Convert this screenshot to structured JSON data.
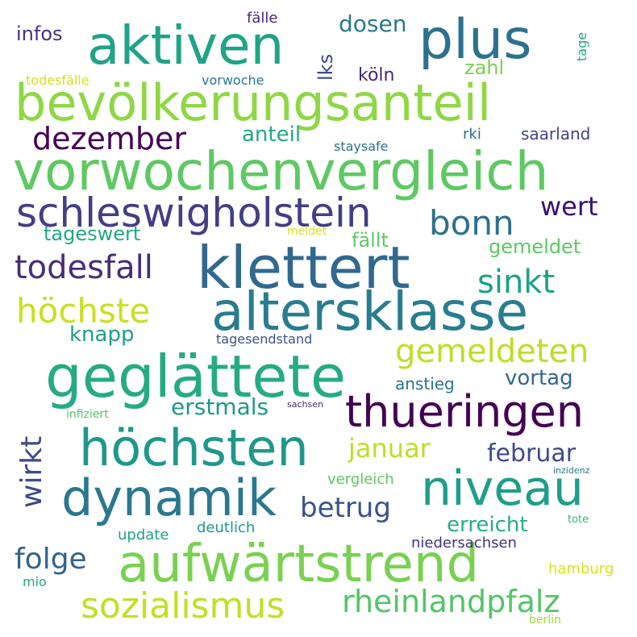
{
  "colors": {
    "background": "#ffffff",
    "viridis_purple": "#440154",
    "viridis_indigo": "#46327e",
    "viridis_blue": "#365c8d",
    "viridis_steel": "#277f8e",
    "viridis_teal": "#1fa187",
    "viridis_green": "#4ac16d",
    "viridis_lime": "#a0da39",
    "viridis_yellow": "#fde725"
  },
  "words": [
    {
      "text": "bevölkerungsanteil",
      "color": "#8fd744",
      "orientation": "horizontal"
    },
    {
      "text": "vorwochenvergleich",
      "color": "#5ec962",
      "orientation": "horizontal"
    },
    {
      "text": "aktiven",
      "color": "#20a386",
      "orientation": "horizontal"
    },
    {
      "text": "plus",
      "color": "#2c728e",
      "orientation": "horizontal"
    },
    {
      "text": "klettert",
      "color": "#31688e",
      "orientation": "horizontal"
    },
    {
      "text": "altersklasse",
      "color": "#287d8e",
      "orientation": "horizontal"
    },
    {
      "text": "schleswigholstein",
      "color": "#433e85",
      "orientation": "horizontal"
    },
    {
      "text": "geglättete",
      "color": "#25ab82",
      "orientation": "horizontal"
    },
    {
      "text": "thueringen",
      "color": "#440154",
      "orientation": "horizontal"
    },
    {
      "text": "höchsten",
      "color": "#1f988b",
      "orientation": "horizontal"
    },
    {
      "text": "dynamik",
      "color": "#2a788e",
      "orientation": "horizontal"
    },
    {
      "text": "niveau",
      "color": "#1f9e89",
      "orientation": "horizontal"
    },
    {
      "text": "aufwärtstrend",
      "color": "#7ad151",
      "orientation": "horizontal"
    },
    {
      "text": "sozialismus",
      "color": "#c2df23",
      "orientation": "horizontal"
    },
    {
      "text": "rheinlandpfalz",
      "color": "#52c569",
      "orientation": "horizontal"
    },
    {
      "text": "dezember",
      "color": "#440154",
      "orientation": "horizontal"
    },
    {
      "text": "bonn",
      "color": "#2c728e",
      "orientation": "horizontal"
    },
    {
      "text": "wert",
      "color": "#3b0f70",
      "orientation": "horizontal"
    },
    {
      "text": "todesfall",
      "color": "#472d7b",
      "orientation": "horizontal"
    },
    {
      "text": "höchste",
      "color": "#c8e020",
      "orientation": "horizontal"
    },
    {
      "text": "sinkt",
      "color": "#1fa188",
      "orientation": "horizontal"
    },
    {
      "text": "gemeldeten",
      "color": "#bddf26",
      "orientation": "horizontal"
    },
    {
      "text": "januar",
      "color": "#bddf26",
      "orientation": "horizontal"
    },
    {
      "text": "betrug",
      "color": "#3b528b",
      "orientation": "horizontal"
    },
    {
      "text": "folge",
      "color": "#33638d",
      "orientation": "horizontal"
    },
    {
      "text": "februar",
      "color": "#3e4a89",
      "orientation": "horizontal"
    },
    {
      "text": "erstmals",
      "color": "#1f988b",
      "orientation": "horizontal"
    },
    {
      "text": "wirkt",
      "color": "#3e4a89",
      "orientation": "vertical"
    },
    {
      "text": "vortag",
      "color": "#31688e",
      "orientation": "horizontal"
    },
    {
      "text": "knapp",
      "color": "#1f9e89",
      "orientation": "horizontal"
    },
    {
      "text": "anteil",
      "color": "#22a884",
      "orientation": "horizontal"
    },
    {
      "text": "tageswert",
      "color": "#22a884",
      "orientation": "horizontal"
    },
    {
      "text": "fällt",
      "color": "#5ec962",
      "orientation": "horizontal"
    },
    {
      "text": "gemeldet",
      "color": "#5ec962",
      "orientation": "horizontal"
    },
    {
      "text": "dosen",
      "color": "#2a788e",
      "orientation": "horizontal"
    },
    {
      "text": "zahl",
      "color": "#7ad151",
      "orientation": "horizontal"
    },
    {
      "text": "köln",
      "color": "#482878",
      "orientation": "horizontal"
    },
    {
      "text": "lks",
      "color": "#3e4a89",
      "orientation": "vertical"
    },
    {
      "text": "infos",
      "color": "#46327e",
      "orientation": "horizontal"
    },
    {
      "text": "fälle",
      "color": "#482878",
      "orientation": "horizontal"
    },
    {
      "text": "tage",
      "color": "#22a884",
      "orientation": "vertical"
    },
    {
      "text": "todesfälle",
      "color": "#d8e219",
      "orientation": "horizontal"
    },
    {
      "text": "vorwoche",
      "color": "#2a788e",
      "orientation": "horizontal"
    },
    {
      "text": "rki",
      "color": "#2c728e",
      "orientation": "horizontal"
    },
    {
      "text": "saarland",
      "color": "#414487",
      "orientation": "horizontal"
    },
    {
      "text": "staysafe",
      "color": "#2c728e",
      "orientation": "horizontal"
    },
    {
      "text": "meldet",
      "color": "#d8e219",
      "orientation": "horizontal"
    },
    {
      "text": "tagesendstand",
      "color": "#3b528b",
      "orientation": "horizontal"
    },
    {
      "text": "anstieg",
      "color": "#2c728e",
      "orientation": "horizontal"
    },
    {
      "text": "infiziert",
      "color": "#52c569",
      "orientation": "horizontal"
    },
    {
      "text": "sachsen",
      "color": "#482878",
      "orientation": "horizontal"
    },
    {
      "text": "vergleich",
      "color": "#5ec962",
      "orientation": "horizontal"
    },
    {
      "text": "inzidenz",
      "color": "#2c728e",
      "orientation": "horizontal"
    },
    {
      "text": "erreicht",
      "color": "#29af7f",
      "orientation": "horizontal"
    },
    {
      "text": "tote",
      "color": "#35b779",
      "orientation": "horizontal"
    },
    {
      "text": "update",
      "color": "#20a386",
      "orientation": "horizontal"
    },
    {
      "text": "deutlich",
      "color": "#1f988b",
      "orientation": "horizontal"
    },
    {
      "text": "niedersachsen",
      "color": "#46327e",
      "orientation": "horizontal"
    },
    {
      "text": "hamburg",
      "color": "#d8e219",
      "orientation": "horizontal"
    },
    {
      "text": "mio",
      "color": "#22a884",
      "orientation": "horizontal"
    },
    {
      "text": "berlin",
      "color": "#a0da39",
      "orientation": "horizontal"
    }
  ]
}
